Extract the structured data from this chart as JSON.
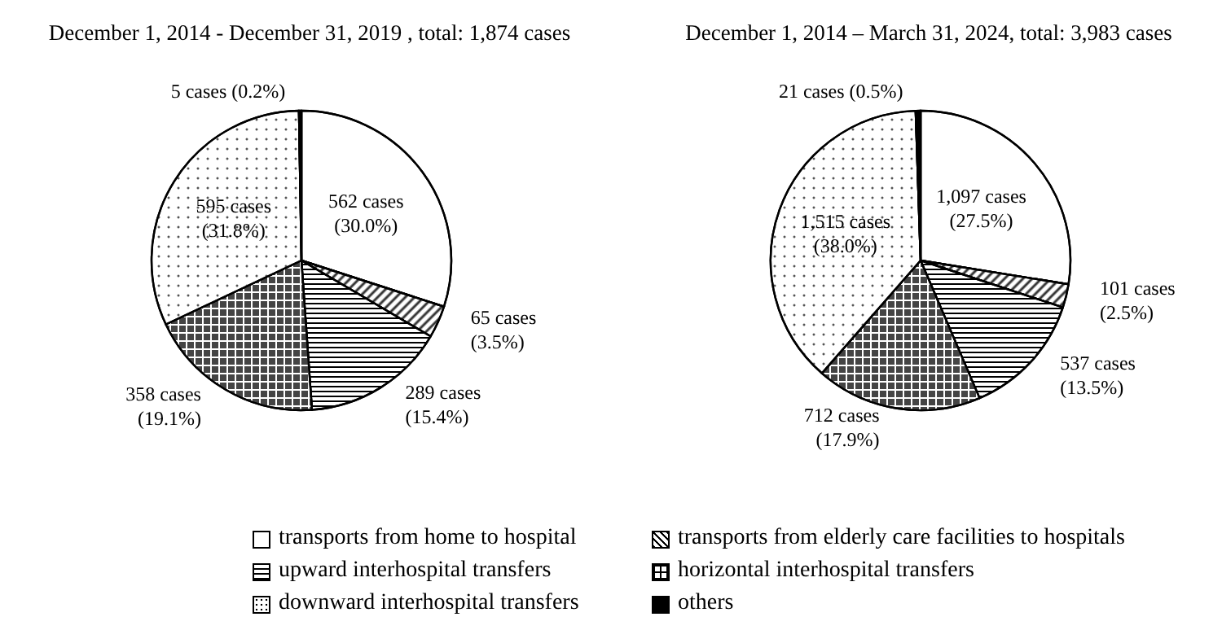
{
  "chart_data": [
    {
      "type": "pie",
      "title": "December 1, 2014 - December 31, 2019 , total: 1,874 cases",
      "categories": [
        "transports from home to hospital",
        "transports from elderly care facilities to hospitals",
        "upward interhospital transfers",
        "horizontal interhospital transfers",
        "downward interhospital transfers",
        "others"
      ],
      "values": [
        562,
        65,
        289,
        358,
        595,
        5
      ],
      "colors": [
        "#ffffff",
        "#ffffff",
        "#ffffff",
        "#ffffff",
        "#ffffff",
        "#000000"
      ],
      "value_labels": [
        "562 cases\n(30.0%)",
        "65 cases\n(3.5%)",
        "289 cases\n(15.4%)",
        "358 cases\n(19.1%)",
        "595 cases\n(31.8%)",
        "5 cases (0.2%)"
      ],
      "legend": "bottom"
    },
    {
      "type": "pie",
      "title": "December 1, 2014 – March 31, 2024, total: 3,983 cases",
      "categories": [
        null,
        null,
        null,
        null,
        null,
        null
      ],
      "values": [
        1097,
        101,
        537,
        712,
        1515,
        21
      ],
      "colors": [
        "#ffffff",
        "#ffffff",
        "#ffffff",
        "#ffffff",
        "#ffffff",
        "#000000"
      ],
      "value_labels": [
        "1,097 cases\n(27.5%)",
        "101 cases\n(2.5%)",
        "537 cases\n(13.5%)",
        "712 cases\n(17.9%)",
        "1,515 cases\n(38.0%)",
        "21 cases (0.5%)"
      ]
    }
  ]
}
